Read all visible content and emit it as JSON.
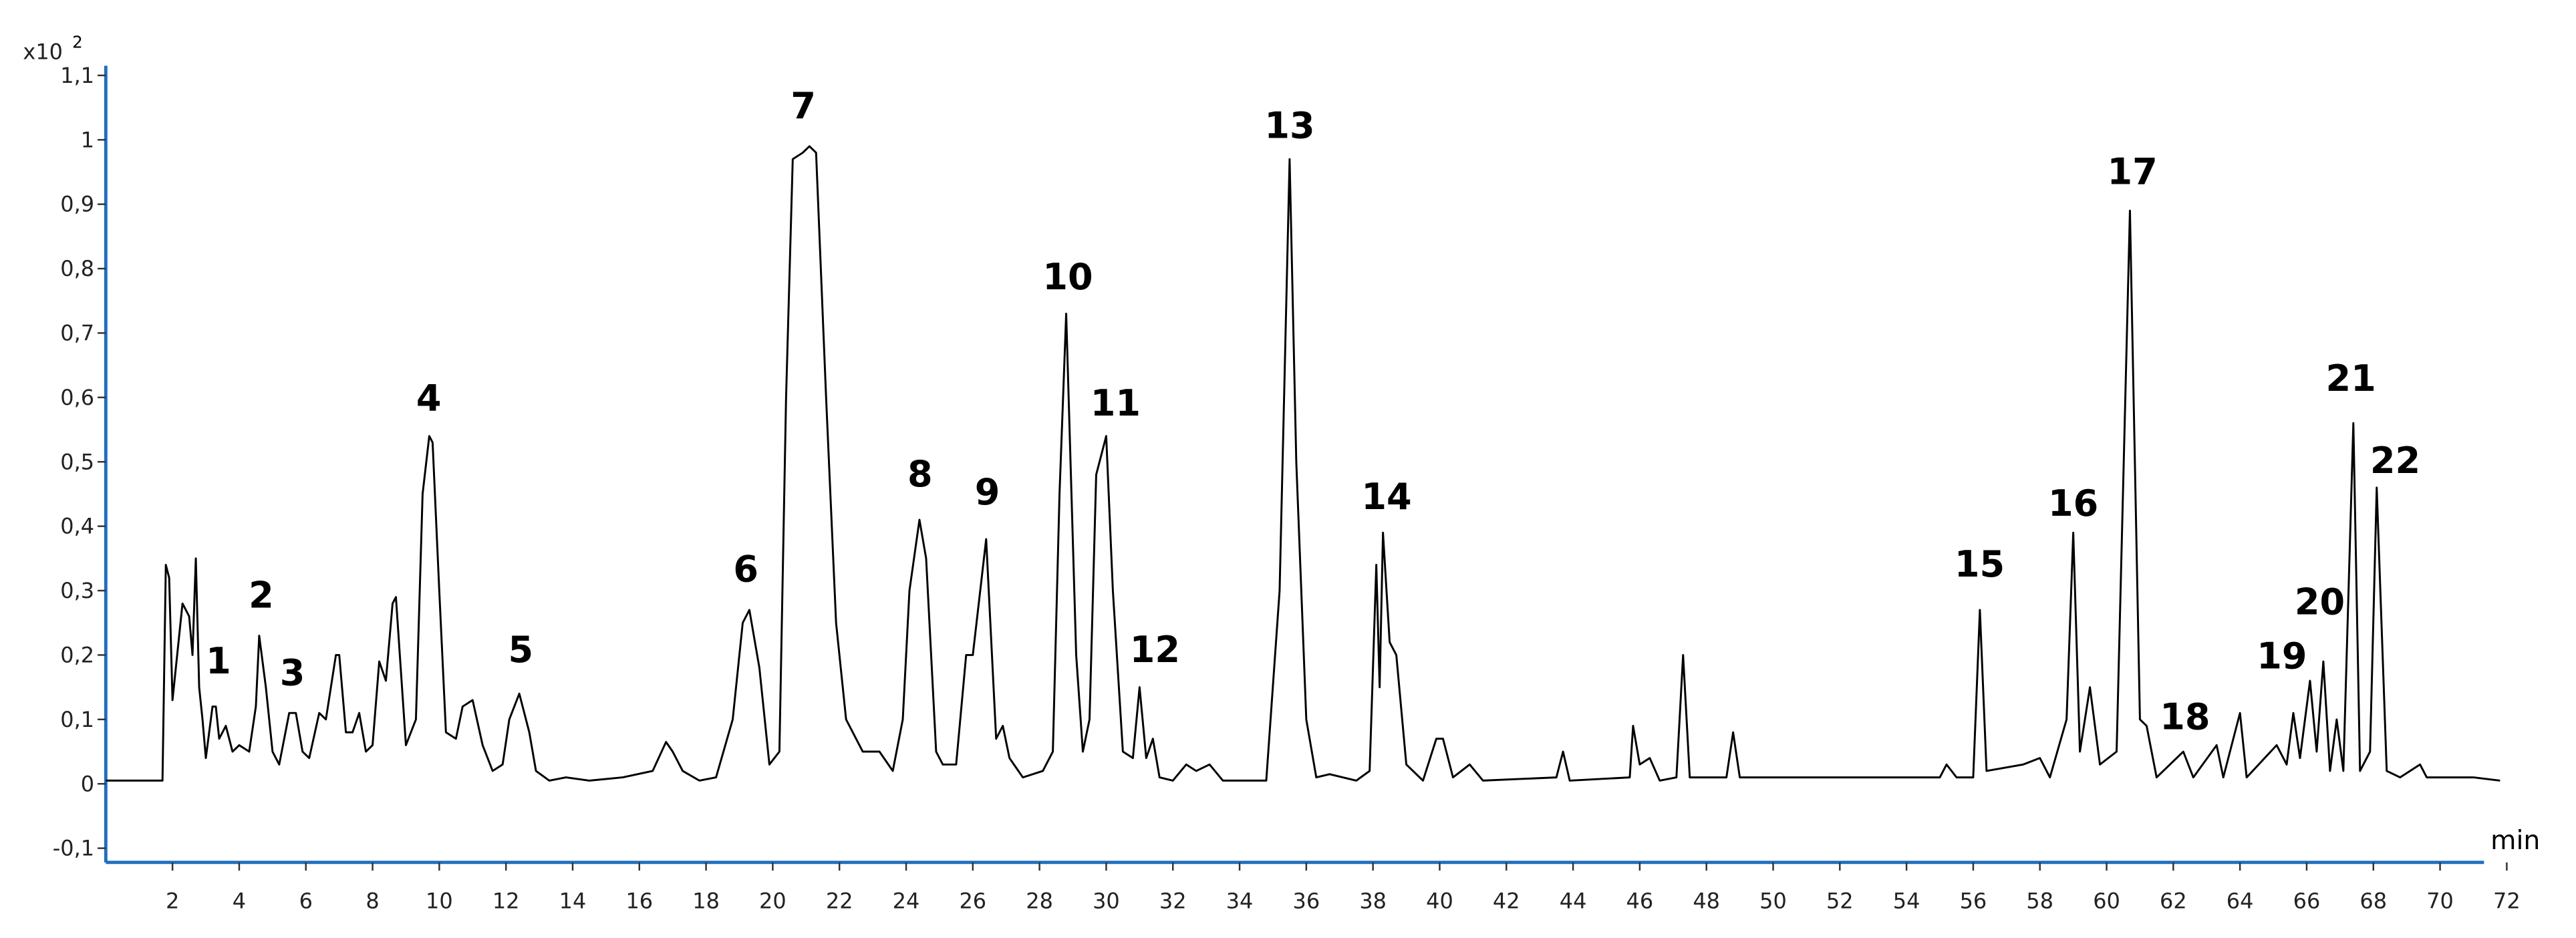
{
  "chart_data": {
    "type": "line",
    "color": "#000000",
    "axis_color": "#1f6fbf",
    "x_label": "min",
    "y_scale_label": {
      "base": "x10",
      "exponent": "2"
    },
    "xlim": [
      0,
      72.5
    ],
    "ylim": [
      -0.122,
      1.115
    ],
    "xticks": [
      2,
      4,
      6,
      8,
      10,
      12,
      14,
      16,
      18,
      20,
      22,
      24,
      26,
      28,
      30,
      32,
      34,
      36,
      38,
      40,
      42,
      44,
      46,
      48,
      50,
      52,
      54,
      56,
      58,
      60,
      62,
      64,
      66,
      68,
      70,
      72
    ],
    "yticks": [
      {
        "value": -0.1,
        "label": "-0,1"
      },
      0,
      {
        "value": 0.1,
        "label": "0,1"
      },
      {
        "value": 0.2,
        "label": "0,2"
      },
      {
        "value": 0.3,
        "label": "0,3"
      },
      {
        "value": 0.4,
        "label": "0,4"
      },
      {
        "value": 0.5,
        "label": "0,5"
      },
      {
        "value": 0.6,
        "label": "0,6"
      },
      {
        "value": 0.7,
        "label": "0,7"
      },
      {
        "value": 0.8,
        "label": "0,8"
      },
      {
        "value": 0.9,
        "label": "0,9"
      },
      1,
      {
        "value": 1.1,
        "label": "1,1"
      }
    ],
    "annotations": [
      "1",
      "2",
      "3",
      "4",
      "5",
      "6",
      "7",
      "8",
      "9",
      "10",
      "11",
      "12",
      "13",
      "14",
      "15",
      "16",
      "17",
      "18",
      "19",
      "20",
      "21",
      "22"
    ],
    "x": [
      0,
      1.7,
      1.8,
      1.9,
      2.0,
      2.1,
      2.3,
      2.5,
      2.6,
      2.7,
      2.8,
      2.9,
      3.0,
      3.1,
      3.2,
      3.3,
      3.4,
      3.6,
      3.8,
      4.0,
      4.3,
      4.5,
      4.6,
      4.8,
      5.0,
      5.2,
      5.5,
      5.7,
      5.9,
      6.1,
      6.4,
      6.6,
      6.9,
      7.0,
      7.2,
      7.4,
      7.6,
      7.8,
      8.0,
      8.2,
      8.4,
      8.6,
      8.7,
      9.0,
      9.3,
      9.5,
      9.7,
      9.8,
      10.0,
      10.2,
      10.5,
      10.7,
      11.0,
      11.3,
      11.6,
      11.9,
      12.1,
      12.4,
      12.7,
      12.9,
      13.3,
      13.8,
      14.5,
      15.5,
      16.4,
      16.8,
      17.0,
      17.3,
      17.8,
      18.3,
      18.8,
      19.1,
      19.3,
      19.6,
      19.9,
      20.2,
      20.4,
      20.6,
      20.9,
      21.1,
      21.3,
      21.6,
      21.9,
      22.2,
      22.7,
      23.2,
      23.6,
      23.9,
      24.1,
      24.4,
      24.6,
      24.9,
      25.1,
      25.5,
      25.8,
      26.0,
      26.4,
      26.7,
      26.9,
      27.1,
      27.5,
      28.1,
      28.4,
      28.6,
      28.8,
      29.1,
      29.3,
      29.5,
      29.7,
      30.0,
      30.2,
      30.5,
      30.8,
      31.0,
      31.2,
      31.4,
      31.6,
      32.0,
      32.4,
      32.7,
      33.1,
      33.5,
      34.8,
      35.2,
      35.5,
      35.7,
      36.0,
      36.3,
      36.7,
      37.5,
      37.9,
      38.1,
      38.2,
      38.3,
      38.5,
      38.7,
      39.0,
      39.5,
      39.9,
      40.1,
      40.4,
      40.9,
      41.3,
      43.5,
      43.7,
      43.9,
      45.7,
      45.8,
      46.0,
      46.3,
      46.6,
      47.1,
      47.3,
      47.5,
      48.6,
      48.8,
      49.0,
      50.0,
      55.0,
      55.2,
      55.5,
      56.0,
      56.2,
      56.4,
      57.5,
      58.0,
      58.3,
      58.8,
      59.0,
      59.2,
      59.5,
      59.8,
      60.3,
      60.7,
      61.0,
      61.2,
      61.5,
      62.3,
      62.6,
      63.3,
      63.5,
      64.0,
      64.2,
      65.1,
      65.4,
      65.6,
      65.8,
      66.1,
      66.3,
      66.5,
      66.7,
      66.9,
      67.1,
      67.4,
      67.6,
      67.9,
      68.1,
      68.4,
      68.8,
      69.4,
      69.6,
      71.0,
      71.8
    ],
    "values": [
      0.005,
      0.005,
      0.34,
      0.32,
      0.13,
      0.18,
      0.28,
      0.26,
      0.2,
      0.35,
      0.15,
      0.1,
      0.04,
      0.08,
      0.12,
      0.12,
      0.07,
      0.09,
      0.05,
      0.06,
      0.05,
      0.12,
      0.23,
      0.15,
      0.05,
      0.03,
      0.11,
      0.11,
      0.05,
      0.04,
      0.11,
      0.1,
      0.2,
      0.2,
      0.08,
      0.08,
      0.11,
      0.05,
      0.06,
      0.19,
      0.16,
      0.28,
      0.29,
      0.06,
      0.1,
      0.45,
      0.54,
      0.53,
      0.3,
      0.08,
      0.07,
      0.12,
      0.13,
      0.06,
      0.02,
      0.03,
      0.1,
      0.14,
      0.08,
      0.02,
      0.005,
      0.01,
      0.005,
      0.01,
      0.02,
      0.065,
      0.05,
      0.02,
      0.005,
      0.01,
      0.1,
      0.25,
      0.27,
      0.18,
      0.03,
      0.05,
      0.6,
      0.97,
      0.98,
      0.99,
      0.98,
      0.6,
      0.25,
      0.1,
      0.05,
      0.05,
      0.02,
      0.1,
      0.3,
      0.41,
      0.35,
      0.05,
      0.03,
      0.03,
      0.2,
      0.2,
      0.38,
      0.07,
      0.09,
      0.04,
      0.01,
      0.02,
      0.05,
      0.45,
      0.73,
      0.2,
      0.05,
      0.1,
      0.48,
      0.54,
      0.3,
      0.05,
      0.04,
      0.15,
      0.04,
      0.07,
      0.01,
      0.005,
      0.03,
      0.02,
      0.03,
      0.005,
      0.005,
      0.3,
      0.97,
      0.5,
      0.1,
      0.01,
      0.015,
      0.005,
      0.02,
      0.34,
      0.15,
      0.39,
      0.22,
      0.2,
      0.03,
      0.005,
      0.07,
      0.07,
      0.01,
      0.03,
      0.005,
      0.01,
      0.05,
      0.005,
      0.01,
      0.09,
      0.03,
      0.04,
      0.005,
      0.01,
      0.2,
      0.01,
      0.01,
      0.08,
      0.01,
      0.01,
      0.01,
      0.03,
      0.01,
      0.01,
      0.27,
      0.02,
      0.03,
      0.04,
      0.01,
      0.1,
      0.39,
      0.05,
      0.15,
      0.03,
      0.05,
      0.89,
      0.1,
      0.09,
      0.01,
      0.05,
      0.01,
      0.06,
      0.01,
      0.11,
      0.01,
      0.06,
      0.03,
      0.11,
      0.04,
      0.16,
      0.05,
      0.19,
      0.02,
      0.1,
      0.02,
      0.56,
      0.02,
      0.05,
      0.46,
      0.02,
      0.01,
      0.03,
      0.01,
      0.01,
      0.005
    ]
  }
}
